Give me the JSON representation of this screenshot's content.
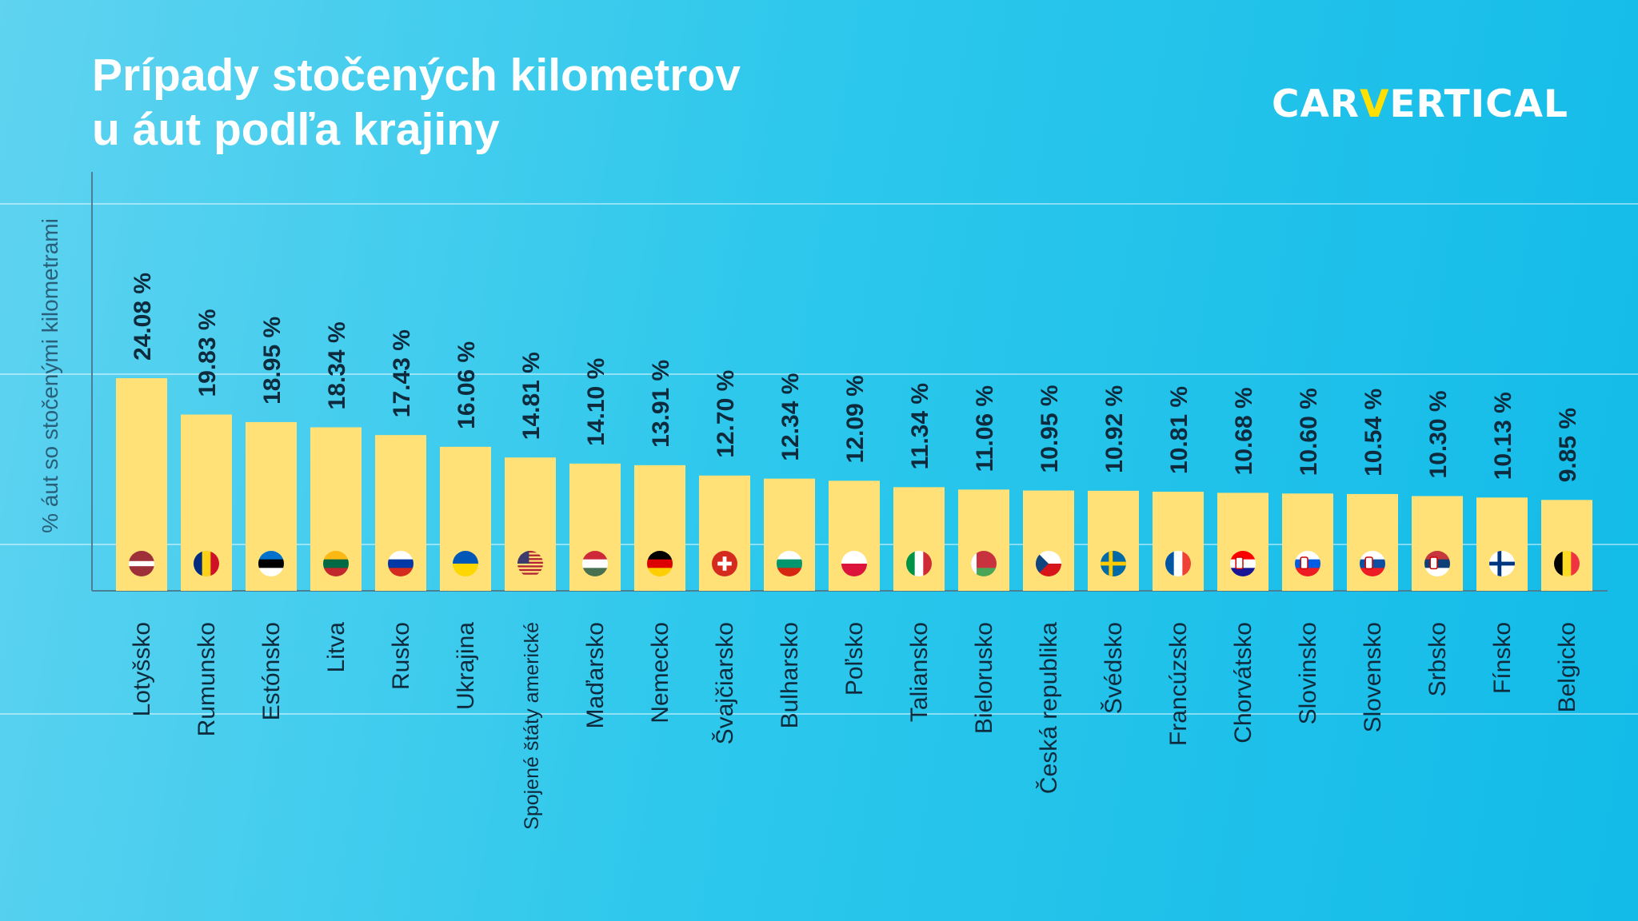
{
  "header": {
    "title_line1": "Prípady stočených kilometrov",
    "title_line2": "u áut podľa krajiny",
    "logo_left": "CAR",
    "logo_v": "V",
    "logo_right": "ERTICAL"
  },
  "colors": {
    "bar": "#ffe177",
    "text": "#0d2b3d",
    "accent": "#ffe000"
  },
  "chart_data": {
    "type": "bar",
    "title": "Prípady stočených kilometrov u áut podľa krajiny",
    "ylabel": "% áut so stočenými kilometrami",
    "xlabel": "",
    "ylim": [
      0,
      30
    ],
    "value_suffix": " %",
    "categories": [
      "Lotyšsko",
      "Rumunsko",
      "Estónsko",
      "Litva",
      "Rusko",
      "Ukrajina",
      "Spojené štáty americké",
      "Maďarsko",
      "Nemecko",
      "Švajčiarsko",
      "Bulharsko",
      "Poľsko",
      "Taliansko",
      "Bielorusko",
      "Česká republika",
      "Švédsko",
      "Francúzsko",
      "Chorvátsko",
      "Slovinsko",
      "Slovensko",
      "Srbsko",
      "Fínsko",
      "Belgicko"
    ],
    "values": [
      24.08,
      19.83,
      18.95,
      18.34,
      17.43,
      16.06,
      14.81,
      14.1,
      13.91,
      12.7,
      12.34,
      12.09,
      11.34,
      11.06,
      10.95,
      10.92,
      10.81,
      10.68,
      10.6,
      10.54,
      10.3,
      10.13,
      9.85
    ],
    "labels": [
      "24.08 %",
      "19.83 %",
      "18.95 %",
      "18.34 %",
      "17.43 %",
      "16.06 %",
      "14.81 %",
      "14.10 %",
      "13.91 %",
      "12.70 %",
      "12.34 %",
      "12.09 %",
      "11.34 %",
      "11.06 %",
      "10.95 %",
      "10.92 %",
      "10.81 %",
      "10.68 %",
      "10.60 %",
      "10.54 %",
      "10.30 %",
      "10.13 %",
      "9.85 %"
    ],
    "flag_icons": [
      "latvia-flag-icon",
      "romania-flag-icon",
      "estonia-flag-icon",
      "lithuania-flag-icon",
      "russia-flag-icon",
      "ukraine-flag-icon",
      "usa-flag-icon",
      "hungary-flag-icon",
      "germany-flag-icon",
      "switzerland-flag-icon",
      "bulgaria-flag-icon",
      "poland-flag-icon",
      "italy-flag-icon",
      "belarus-flag-icon",
      "czech-flag-icon",
      "sweden-flag-icon",
      "france-flag-icon",
      "croatia-flag-icon",
      "slovenia-flag-icon",
      "slovakia-flag-icon",
      "serbia-flag-icon",
      "finland-flag-icon",
      "belgium-flag-icon"
    ],
    "grid": true
  }
}
